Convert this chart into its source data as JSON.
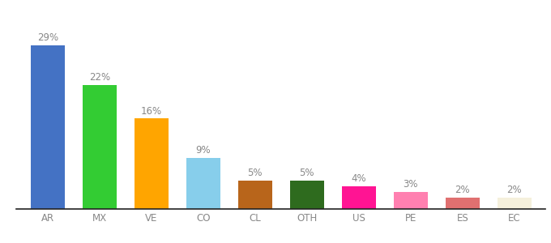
{
  "categories": [
    "AR",
    "MX",
    "VE",
    "CO",
    "CL",
    "OTH",
    "US",
    "PE",
    "ES",
    "EC"
  ],
  "values": [
    29,
    22,
    16,
    9,
    5,
    5,
    4,
    3,
    2,
    2
  ],
  "bar_colors": [
    "#4472c4",
    "#33cc33",
    "#ffa500",
    "#87ceeb",
    "#b8651b",
    "#2e6b1e",
    "#ff1493",
    "#ff80b0",
    "#e07070",
    "#f5f0dc"
  ],
  "ylim": [
    0,
    34
  ],
  "background_color": "#ffffff",
  "label_fontsize": 8.5,
  "tick_fontsize": 8.5,
  "bar_width": 0.65,
  "label_color": "#888888",
  "tick_color": "#888888",
  "spine_color": "#222222"
}
